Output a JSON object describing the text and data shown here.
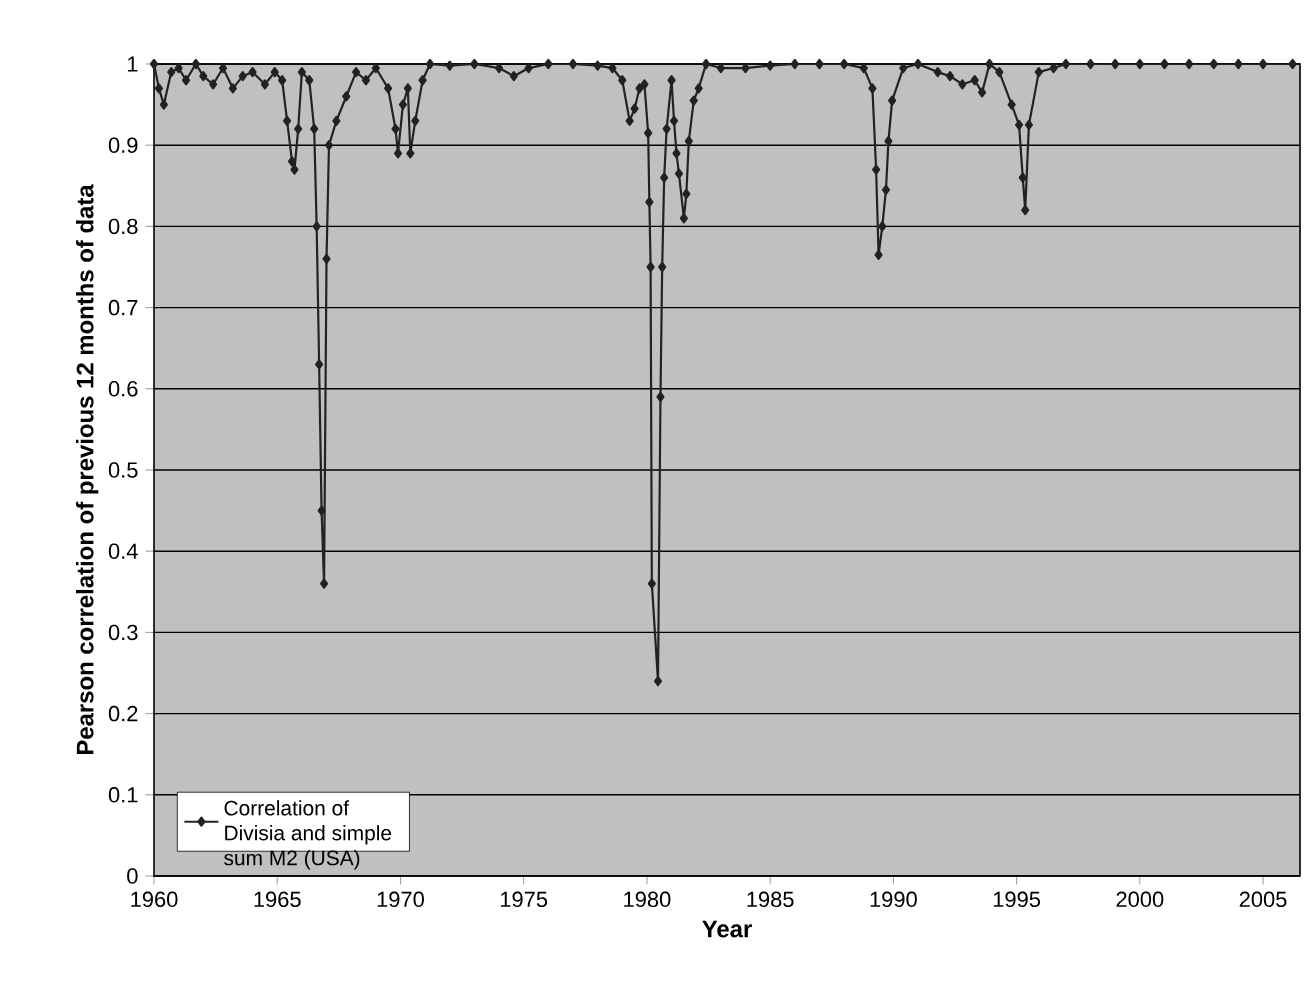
{
  "chart_data": {
    "type": "line",
    "xlabel": "Year",
    "ylabel": "Pearson correlation of previous 12 months of data",
    "xlim": [
      1960,
      2006.5
    ],
    "ylim": [
      0,
      1
    ],
    "xticks": [
      1960,
      1965,
      1970,
      1975,
      1980,
      1985,
      1990,
      1995,
      2000,
      2005
    ],
    "yticks": [
      0,
      0.1,
      0.2,
      0.3,
      0.4,
      0.5,
      0.6,
      0.7,
      0.8,
      0.9,
      1
    ],
    "grid": "y",
    "legend": "bottom left",
    "marker": "diamond",
    "line_style": "solid",
    "series": [
      {
        "name": "Correlation of Divisia and simple sum M2 (USA)",
        "color": "#222222",
        "x": [
          1960.0,
          1960.2,
          1960.4,
          1960.7,
          1961.0,
          1961.3,
          1961.7,
          1962.0,
          1962.4,
          1962.8,
          1963.2,
          1963.6,
          1964.0,
          1964.5,
          1964.9,
          1965.2,
          1965.4,
          1965.6,
          1965.7,
          1965.85,
          1966.0,
          1966.3,
          1966.5,
          1966.6,
          1966.7,
          1966.8,
          1966.9,
          1967.0,
          1967.1,
          1967.4,
          1967.8,
          1968.2,
          1968.6,
          1969.0,
          1969.5,
          1969.8,
          1969.9,
          1970.1,
          1970.3,
          1970.4,
          1970.6,
          1970.9,
          1971.2,
          1972.0,
          1973.0,
          1974.0,
          1974.6,
          1975.2,
          1976.0,
          1977.0,
          1978.0,
          1978.6,
          1979.0,
          1979.3,
          1979.5,
          1979.7,
          1979.9,
          1980.05,
          1980.1,
          1980.15,
          1980.2,
          1980.45,
          1980.55,
          1980.62,
          1980.7,
          1980.8,
          1981.0,
          1981.1,
          1981.2,
          1981.3,
          1981.5,
          1981.6,
          1981.7,
          1981.9,
          1982.1,
          1982.4,
          1983.0,
          1984.0,
          1985.0,
          1986.0,
          1987.0,
          1988.0,
          1988.8,
          1989.15,
          1989.3,
          1989.4,
          1989.55,
          1989.7,
          1989.8,
          1989.95,
          1990.4,
          1991.0,
          1991.8,
          1992.3,
          1992.8,
          1993.3,
          1993.6,
          1993.9,
          1994.3,
          1994.8,
          1995.1,
          1995.25,
          1995.35,
          1995.5,
          1995.9,
          1996.5,
          1997.0,
          1998.0,
          1999.0,
          2000.0,
          2001.0,
          2002.0,
          2003.0,
          2004.0,
          2005.0,
          2006.2
        ],
        "values": [
          1.0,
          0.97,
          0.95,
          0.99,
          0.995,
          0.98,
          1.0,
          0.985,
          0.975,
          0.995,
          0.97,
          0.985,
          0.99,
          0.975,
          0.99,
          0.98,
          0.93,
          0.88,
          0.87,
          0.92,
          0.99,
          0.98,
          0.92,
          0.8,
          0.63,
          0.45,
          0.36,
          0.76,
          0.9,
          0.93,
          0.96,
          0.99,
          0.98,
          0.995,
          0.97,
          0.92,
          0.89,
          0.95,
          0.97,
          0.89,
          0.93,
          0.98,
          1.0,
          0.998,
          1.0,
          0.995,
          0.985,
          0.995,
          1.0,
          1.0,
          0.998,
          0.995,
          0.98,
          0.93,
          0.945,
          0.97,
          0.975,
          0.915,
          0.83,
          0.75,
          0.36,
          0.24,
          0.59,
          0.75,
          0.86,
          0.92,
          0.98,
          0.93,
          0.89,
          0.865,
          0.81,
          0.84,
          0.905,
          0.955,
          0.97,
          1.0,
          0.995,
          0.995,
          0.998,
          1.0,
          1.0,
          1.0,
          0.995,
          0.97,
          0.87,
          0.765,
          0.8,
          0.845,
          0.905,
          0.955,
          0.995,
          1.0,
          0.99,
          0.985,
          0.975,
          0.98,
          0.965,
          1.0,
          0.99,
          0.95,
          0.925,
          0.86,
          0.82,
          0.925,
          0.99,
          0.995,
          1.0,
          1.0,
          1.0,
          1.0,
          1.0,
          1.0,
          1.0,
          1.0,
          1.0,
          1.0
        ]
      }
    ]
  }
}
